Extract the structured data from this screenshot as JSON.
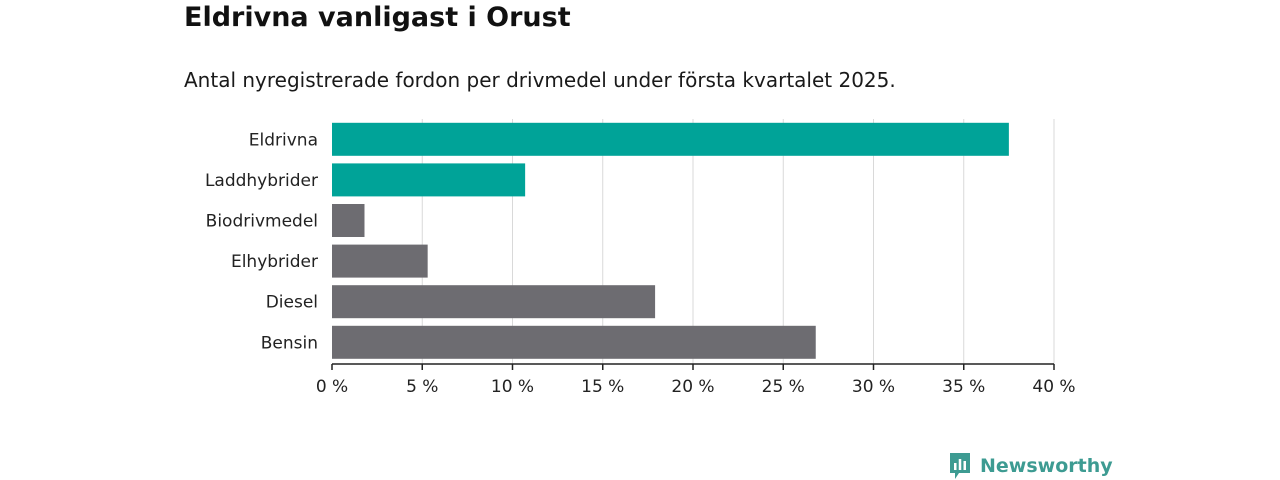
{
  "title": "Eldrivna vanligast i Orust",
  "subtitle": "Antal nyregistrerade fordon per drivmedel under första kvartalet 2025.",
  "brand": {
    "name": "Newsworthy",
    "icon": "newsworthy-logo-icon",
    "color": "#3d9b92"
  },
  "colors": {
    "highlight": "#00a398",
    "default": "#6d6c71",
    "grid": "#d9d9d9",
    "axis": "#222222"
  },
  "chart_data": {
    "type": "bar",
    "orientation": "horizontal",
    "categories": [
      "Eldrivna",
      "Laddhybrider",
      "Biodrivmedel",
      "Elhybrider",
      "Diesel",
      "Bensin"
    ],
    "values": [
      37.5,
      10.7,
      1.8,
      5.3,
      17.9,
      26.8
    ],
    "highlighted": [
      "Eldrivna",
      "Laddhybrider"
    ],
    "xlim": [
      0,
      40
    ],
    "xticks": [
      0,
      5,
      10,
      15,
      20,
      25,
      30,
      35,
      40
    ],
    "xtick_labels": [
      "0 %",
      "5 %",
      "10 %",
      "15 %",
      "20 %",
      "25 %",
      "30 %",
      "35 %",
      "40 %"
    ],
    "grid": "vertical",
    "legend": "none"
  }
}
